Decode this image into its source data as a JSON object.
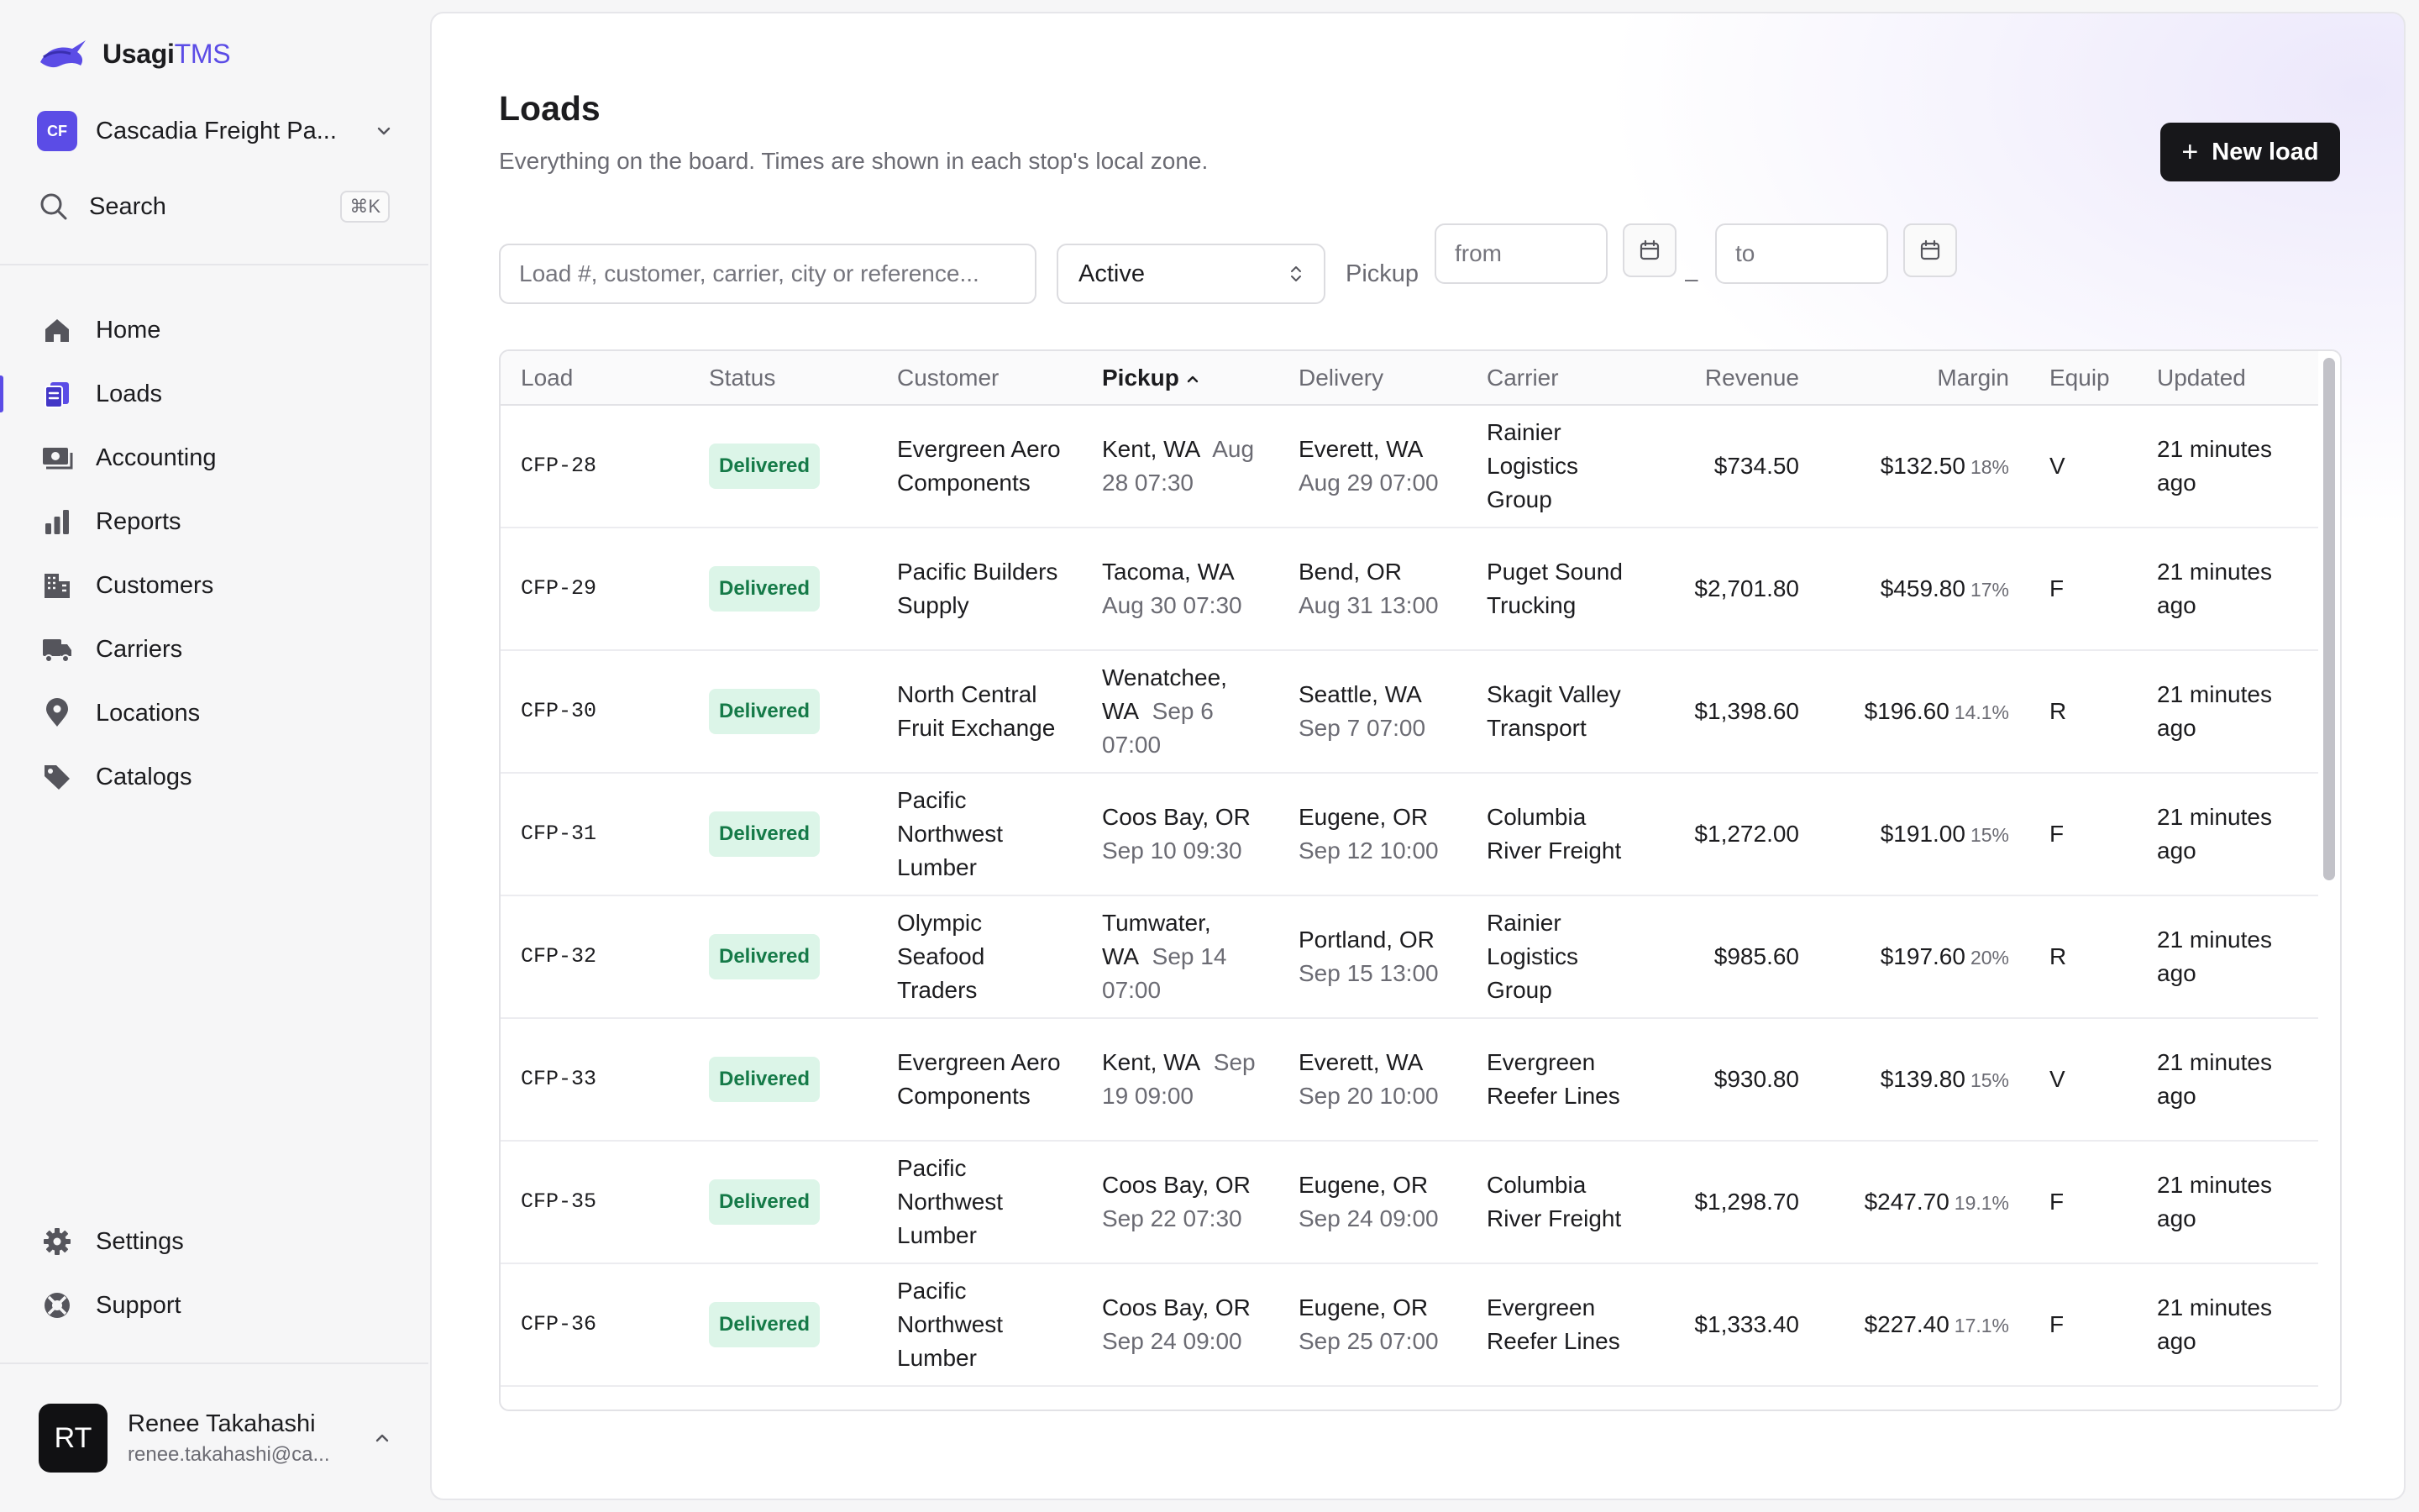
{
  "brand": {
    "name": "Usagi",
    "suffix": "TMS"
  },
  "org": {
    "initials": "CF",
    "name": "Cascadia Freight Pa..."
  },
  "search": {
    "label": "Search",
    "shortcut": "⌘K"
  },
  "nav": [
    {
      "id": "home",
      "label": "Home",
      "icon": "home-icon"
    },
    {
      "id": "loads",
      "label": "Loads",
      "icon": "loads-icon",
      "active": true
    },
    {
      "id": "accounting",
      "label": "Accounting",
      "icon": "money-icon"
    },
    {
      "id": "reports",
      "label": "Reports",
      "icon": "bar-chart-icon"
    },
    {
      "id": "customers",
      "label": "Customers",
      "icon": "building-icon"
    },
    {
      "id": "carriers",
      "label": "Carriers",
      "icon": "truck-icon"
    },
    {
      "id": "locations",
      "label": "Locations",
      "icon": "map-pin-icon"
    },
    {
      "id": "catalogs",
      "label": "Catalogs",
      "icon": "tag-icon"
    }
  ],
  "nav_bottom": [
    {
      "id": "settings",
      "label": "Settings",
      "icon": "gear-icon"
    },
    {
      "id": "support",
      "label": "Support",
      "icon": "lifebuoy-icon"
    }
  ],
  "user": {
    "initials": "RT",
    "name": "Renee Takahashi",
    "email": "renee.takahashi@ca..."
  },
  "page": {
    "title": "Loads",
    "subtitle": "Everything on the board. Times are shown in each stop's local zone.",
    "new_button": "New load"
  },
  "filters": {
    "search_placeholder": "Load #, customer, carrier, city or reference...",
    "status_value": "Active",
    "pickup_label": "Pickup",
    "from_placeholder": "from",
    "to_placeholder": "to",
    "separator": "–"
  },
  "table": {
    "columns": [
      "Load",
      "Status",
      "Customer",
      "Pickup",
      "Delivery",
      "Carrier",
      "Revenue",
      "Margin",
      "Equip",
      "Updated"
    ],
    "sorted_column": "Pickup",
    "rows": [
      {
        "load": "CFP-28",
        "status": "Delivered",
        "customer": "Evergreen Aero Components",
        "pickup_city": "Kent, WA",
        "pickup_time": "Aug 28 07:30",
        "delivery_city": "Everett, WA",
        "delivery_time": "Aug 29 07:00",
        "carrier": "Rainier Logistics Group",
        "revenue": "$734.50",
        "margin": "$132.50",
        "margin_pct": "18%",
        "equip": "V",
        "updated": "21 minutes ago"
      },
      {
        "load": "CFP-29",
        "status": "Delivered",
        "customer": "Pacific Builders Supply",
        "pickup_city": "Tacoma, WA",
        "pickup_time": "Aug 30 07:30",
        "delivery_city": "Bend, OR",
        "delivery_time": "Aug 31 13:00",
        "carrier": "Puget Sound Trucking",
        "revenue": "$2,701.80",
        "margin": "$459.80",
        "margin_pct": "17%",
        "equip": "F",
        "updated": "21 minutes ago"
      },
      {
        "load": "CFP-30",
        "status": "Delivered",
        "customer": "North Central Fruit Exchange",
        "pickup_city": "Wenatchee, WA",
        "pickup_time": "Sep 6 07:00",
        "delivery_city": "Seattle, WA",
        "delivery_time": "Sep 7 07:00",
        "carrier": "Skagit Valley Transport",
        "revenue": "$1,398.60",
        "margin": "$196.60",
        "margin_pct": "14.1%",
        "equip": "R",
        "updated": "21 minutes ago"
      },
      {
        "load": "CFP-31",
        "status": "Delivered",
        "customer": "Pacific Northwest Lumber",
        "pickup_city": "Coos Bay, OR",
        "pickup_time": "Sep 10 09:30",
        "delivery_city": "Eugene, OR",
        "delivery_time": "Sep 12 10:00",
        "carrier": "Columbia River Freight",
        "revenue": "$1,272.00",
        "margin": "$191.00",
        "margin_pct": "15%",
        "equip": "F",
        "updated": "21 minutes ago"
      },
      {
        "load": "CFP-32",
        "status": "Delivered",
        "customer": "Olympic Seafood Traders",
        "pickup_city": "Tumwater, WA",
        "pickup_time": "Sep 14 07:00",
        "delivery_city": "Portland, OR",
        "delivery_time": "Sep 15 13:00",
        "carrier": "Rainier Logistics Group",
        "revenue": "$985.60",
        "margin": "$197.60",
        "margin_pct": "20%",
        "equip": "R",
        "updated": "21 minutes ago"
      },
      {
        "load": "CFP-33",
        "status": "Delivered",
        "customer": "Evergreen Aero Components",
        "pickup_city": "Kent, WA",
        "pickup_time": "Sep 19 09:00",
        "delivery_city": "Everett, WA",
        "delivery_time": "Sep 20 10:00",
        "carrier": "Evergreen Reefer Lines",
        "revenue": "$930.80",
        "margin": "$139.80",
        "margin_pct": "15%",
        "equip": "V",
        "updated": "21 minutes ago"
      },
      {
        "load": "CFP-35",
        "status": "Delivered",
        "customer": "Pacific Northwest Lumber",
        "pickup_city": "Coos Bay, OR",
        "pickup_time": "Sep 22 07:30",
        "delivery_city": "Eugene, OR",
        "delivery_time": "Sep 24 09:00",
        "carrier": "Columbia River Freight",
        "revenue": "$1,298.70",
        "margin": "$247.70",
        "margin_pct": "19.1%",
        "equip": "F",
        "updated": "21 minutes ago"
      },
      {
        "load": "CFP-36",
        "status": "Delivered",
        "customer": "Pacific Northwest Lumber",
        "pickup_city": "Coos Bay, OR",
        "pickup_time": "Sep 24 09:00",
        "delivery_city": "Eugene, OR",
        "delivery_time": "Sep 25 07:00",
        "carrier": "Evergreen Reefer Lines",
        "revenue": "$1,333.40",
        "margin": "$227.40",
        "margin_pct": "17.1%",
        "equip": "F",
        "updated": "21 minutes ago"
      }
    ]
  },
  "colors": {
    "accent": "#5b4ce6",
    "delivered_bg": "#dcf5e8",
    "delivered_text": "#157a48",
    "button_bg": "#17171a"
  }
}
